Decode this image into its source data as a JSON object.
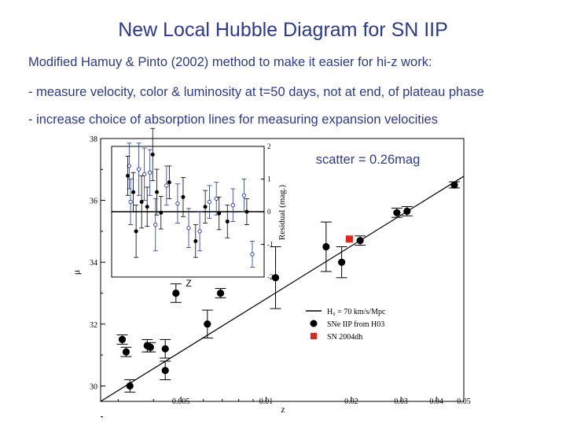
{
  "slide": {
    "title": "New Local Hubble Diagram for SN IIP",
    "line1": "Modified Hamuy & Pinto (2002) method to make it easier for hi-z work:",
    "line2": "- measure velocity, color & luminosity at t=50 days, not at end, of plateau phase",
    "line3": "- increase choice of absorption lines for measuring expansion velocities"
  },
  "colors": {
    "text": "#2b3990",
    "highlight": "#e8211d",
    "data": "#000000",
    "inset_open": "#2233aa"
  },
  "chart_data": [
    {
      "type": "scatter",
      "title": "",
      "xlabel": "z",
      "ylabel": "μ",
      "xscale": "log",
      "xlim": [
        0.0026,
        0.05
      ],
      "ylim": [
        29.5,
        38
      ],
      "xticks": [
        0.005,
        0.01,
        0.02,
        0.03,
        0.04,
        0.05
      ],
      "xticklabels": [
        "0.005",
        "0.01",
        "0.02",
        "0.03",
        "0.04",
        "0.05"
      ],
      "yticks": [
        30,
        32,
        34,
        36,
        38
      ],
      "yticklabels": [
        "30",
        "32",
        "34",
        "36",
        "38"
      ],
      "annotation": "scatter = 0.26mag",
      "series": [
        {
          "name": "SNe IIP from H03",
          "marker": "circle",
          "color": "#000000",
          "points": [
            {
              "x": 0.0031,
              "y": 31.5,
              "err": 0.15
            },
            {
              "x": 0.0032,
              "y": 31.1,
              "err": 0.15
            },
            {
              "x": 0.0033,
              "y": 30.0,
              "err": 0.2
            },
            {
              "x": 0.0038,
              "y": 31.3,
              "err": 0.2
            },
            {
              "x": 0.0039,
              "y": 31.25,
              "err": 0.15
            },
            {
              "x": 0.0044,
              "y": 30.5,
              "err": 0.3
            },
            {
              "x": 0.0044,
              "y": 31.2,
              "err": 0.3
            },
            {
              "x": 0.0048,
              "y": 33.0,
              "err": 0.3
            },
            {
              "x": 0.0062,
              "y": 32.0,
              "err": 0.45
            },
            {
              "x": 0.0069,
              "y": 33.0,
              "err": 0.15
            },
            {
              "x": 0.0108,
              "y": 33.5,
              "err": 1.0
            },
            {
              "x": 0.0163,
              "y": 34.5,
              "err": 0.8
            },
            {
              "x": 0.0185,
              "y": 34.0,
              "err": 0.5
            },
            {
              "x": 0.0215,
              "y": 34.7,
              "err": 0.15
            },
            {
              "x": 0.029,
              "y": 35.6,
              "err": 0.15
            },
            {
              "x": 0.0315,
              "y": 35.65,
              "err": 0.15
            },
            {
              "x": 0.0463,
              "y": 36.5,
              "err": 0.1
            }
          ]
        },
        {
          "name": "SN 2004dh",
          "marker": "square",
          "color": "#e8211d",
          "points": [
            {
              "x": 0.0197,
              "y": 34.75,
              "err": 0.0
            }
          ]
        },
        {
          "name": "H0 = 70 km/s/Mpc",
          "type": "line",
          "color": "#000000",
          "x": [
            0.0026,
            0.05
          ],
          "y": [
            29.5,
            36.78
          ]
        }
      ],
      "legend": {
        "position": "bottom-right",
        "entries": [
          "H₀ = 70 km/s/Mpc",
          "SNe IIP from H03",
          "SN 2004dh"
        ]
      }
    },
    {
      "type": "scatter",
      "title": "inset",
      "xlabel": "Z",
      "ylabel": "Residual (mag.)",
      "ylim": [
        -2,
        2
      ],
      "yticks": [
        -2,
        -1,
        0,
        1,
        2
      ],
      "yticklabels": [
        "-2",
        "-1",
        "0",
        "1",
        "2"
      ],
      "hline": 0,
      "series": [
        {
          "name": "filled",
          "marker": "circle-filled",
          "points": [
            {
              "x": 0.06,
              "y": 1.1,
              "err": 0.6
            },
            {
              "x": 0.1,
              "y": 0.6,
              "err": 0.6
            },
            {
              "x": 0.12,
              "y": -0.6,
              "err": 0.8
            },
            {
              "x": 0.16,
              "y": 0.3,
              "err": 0.8
            },
            {
              "x": 0.2,
              "y": 0.15,
              "err": 0.6
            },
            {
              "x": 0.24,
              "y": 1.75,
              "err": 0.8
            },
            {
              "x": 0.27,
              "y": 0.6,
              "err": 0.7
            },
            {
              "x": 0.3,
              "y": -0.03,
              "err": 0.5
            },
            {
              "x": 0.36,
              "y": 0.9,
              "err": 0.5
            },
            {
              "x": 0.46,
              "y": 0.45,
              "err": 0.6
            },
            {
              "x": 0.55,
              "y": -0.9,
              "err": 0.5
            },
            {
              "x": 0.62,
              "y": 0.15,
              "err": 0.5
            },
            {
              "x": 0.72,
              "y": -0.05,
              "err": 0.5
            },
            {
              "x": 0.78,
              "y": -0.3,
              "err": 0.5
            },
            {
              "x": 0.92,
              "y": 0.0,
              "err": 0.4
            }
          ]
        },
        {
          "name": "open",
          "marker": "circle-open",
          "points": [
            {
              "x": 0.07,
              "y": 1.4,
              "err": 0.7
            },
            {
              "x": 0.08,
              "y": 0.3,
              "err": 0.7
            },
            {
              "x": 0.14,
              "y": 1.3,
              "err": 0.8
            },
            {
              "x": 0.18,
              "y": 1.15,
              "err": 0.8
            },
            {
              "x": 0.22,
              "y": 1.2,
              "err": 0.7
            },
            {
              "x": 0.26,
              "y": -0.4,
              "err": 0.8
            },
            {
              "x": 0.34,
              "y": 0.8,
              "err": 0.6
            },
            {
              "x": 0.42,
              "y": 0.25,
              "err": 0.6
            },
            {
              "x": 0.5,
              "y": -0.5,
              "err": 0.6
            },
            {
              "x": 0.58,
              "y": -0.6,
              "err": 0.6
            },
            {
              "x": 0.65,
              "y": 0.3,
              "err": 0.5
            },
            {
              "x": 0.7,
              "y": 0.4,
              "err": 0.5
            },
            {
              "x": 0.82,
              "y": 0.2,
              "err": 0.5
            },
            {
              "x": 0.9,
              "y": 0.5,
              "err": 0.5
            },
            {
              "x": 0.96,
              "y": -1.3,
              "err": 0.4
            }
          ]
        }
      ]
    }
  ]
}
